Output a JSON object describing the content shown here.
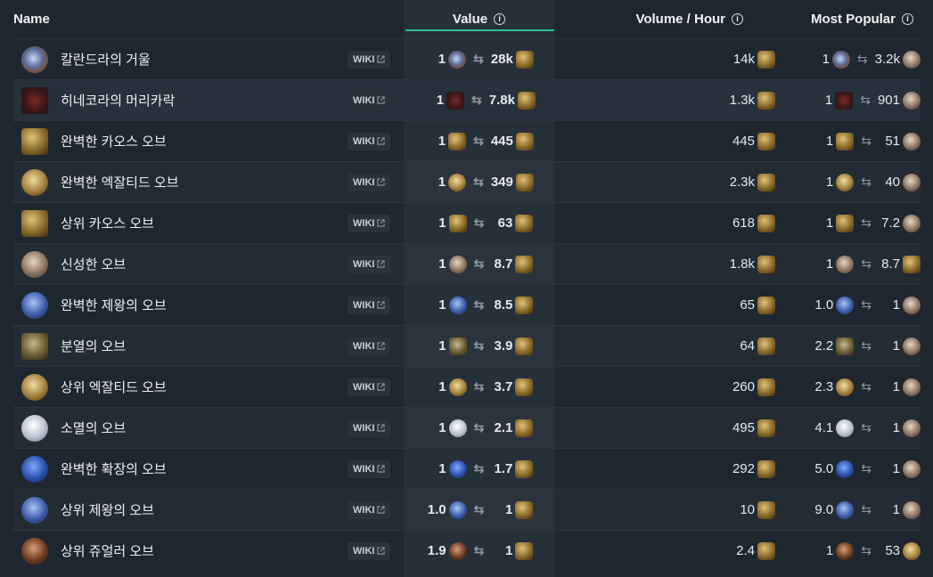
{
  "header": {
    "name": "Name",
    "value": "Value",
    "volume": "Volume / Hour",
    "popular": "Most Popular",
    "info_glyph": "i"
  },
  "colors": {
    "accent": "#2bbf8f",
    "background": "#1e2730",
    "value_column": "#263039"
  },
  "wiki_label": "WIKI",
  "swap_glyph": "⇆",
  "rows": [
    {
      "name": "칼란드라의 거울",
      "icon": "mirror",
      "value_left": "1",
      "value_left_icon": "mirror",
      "value_right": "28k",
      "value_right_icon": "chaos",
      "volume": "14k",
      "pop_left": "1",
      "pop_left_icon": "mirror",
      "pop_right": "3.2k",
      "pop_right_icon": "divine"
    },
    {
      "name": "히네코라의 머리카락",
      "icon": "horn",
      "value_left": "1",
      "value_left_icon": "horn",
      "value_right": "7.8k",
      "value_right_icon": "chaos",
      "volume": "1.3k",
      "pop_left": "1",
      "pop_left_icon": "horn",
      "pop_right": "901",
      "pop_right_icon": "divine"
    },
    {
      "name": "완벽한 카오스 오브",
      "icon": "chaos",
      "value_left": "1",
      "value_left_icon": "chaos",
      "value_right": "445",
      "value_right_icon": "chaos",
      "volume": "445",
      "pop_left": "1",
      "pop_left_icon": "chaos",
      "pop_right": "51",
      "pop_right_icon": "divine"
    },
    {
      "name": "완벽한 엑잘티드 오브",
      "icon": "exalt",
      "value_left": "1",
      "value_left_icon": "exalt",
      "value_right": "349",
      "value_right_icon": "chaos",
      "volume": "2.3k",
      "pop_left": "1",
      "pop_left_icon": "exalt",
      "pop_right": "40",
      "pop_right_icon": "divine"
    },
    {
      "name": "상위 카오스 오브",
      "icon": "chaos",
      "value_left": "1",
      "value_left_icon": "chaos",
      "value_right": "63",
      "value_right_icon": "chaos",
      "volume": "618",
      "pop_left": "1",
      "pop_left_icon": "chaos",
      "pop_right": "7.2",
      "pop_right_icon": "divine"
    },
    {
      "name": "신성한 오브",
      "icon": "divine",
      "value_left": "1",
      "value_left_icon": "divine",
      "value_right": "8.7",
      "value_right_icon": "chaos",
      "volume": "1.8k",
      "pop_left": "1",
      "pop_left_icon": "divine",
      "pop_right": "8.7",
      "pop_right_icon": "chaos"
    },
    {
      "name": "완벽한 제왕의 오브",
      "icon": "regal",
      "value_left": "1",
      "value_left_icon": "regal",
      "value_right": "8.5",
      "value_right_icon": "chaos",
      "volume": "65",
      "pop_left": "1.0",
      "pop_left_icon": "regal",
      "pop_right": "1",
      "pop_right_icon": "divine"
    },
    {
      "name": "분열의 오브",
      "icon": "fracture",
      "value_left": "1",
      "value_left_icon": "fracture",
      "value_right": "3.9",
      "value_right_icon": "chaos",
      "volume": "64",
      "pop_left": "2.2",
      "pop_left_icon": "fracture",
      "pop_right": "1",
      "pop_right_icon": "divine"
    },
    {
      "name": "상위 엑잘티드 오브",
      "icon": "exalt",
      "value_left": "1",
      "value_left_icon": "exalt",
      "value_right": "3.7",
      "value_right_icon": "chaos",
      "volume": "260",
      "pop_left": "2.3",
      "pop_left_icon": "exalt",
      "pop_right": "1",
      "pop_right_icon": "divine"
    },
    {
      "name": "소멸의 오브",
      "icon": "annul",
      "value_left": "1",
      "value_left_icon": "annul",
      "value_right": "2.1",
      "value_right_icon": "chaos",
      "volume": "495",
      "pop_left": "4.1",
      "pop_left_icon": "annul",
      "pop_right": "1",
      "pop_right_icon": "divine"
    },
    {
      "name": "완벽한 확장의 오브",
      "icon": "augment",
      "value_left": "1",
      "value_left_icon": "augment",
      "value_right": "1.7",
      "value_right_icon": "chaos",
      "volume": "292",
      "pop_left": "5.0",
      "pop_left_icon": "augment",
      "pop_right": "1",
      "pop_right_icon": "divine"
    },
    {
      "name": "상위 제왕의 오브",
      "icon": "regal",
      "value_left": "1.0",
      "value_left_icon": "regal",
      "value_right": "1",
      "value_right_icon": "chaos",
      "volume": "10",
      "pop_left": "9.0",
      "pop_left_icon": "regal",
      "pop_right": "1",
      "pop_right_icon": "divine"
    },
    {
      "name": "상위 쥬얼러 오브",
      "icon": "jeweller",
      "value_left": "1.9",
      "value_left_icon": "jeweller",
      "value_right": "1",
      "value_right_icon": "chaos",
      "volume": "2.4",
      "pop_left": "1",
      "pop_left_icon": "jeweller",
      "pop_right": "53",
      "pop_right_icon": "exalt"
    }
  ]
}
